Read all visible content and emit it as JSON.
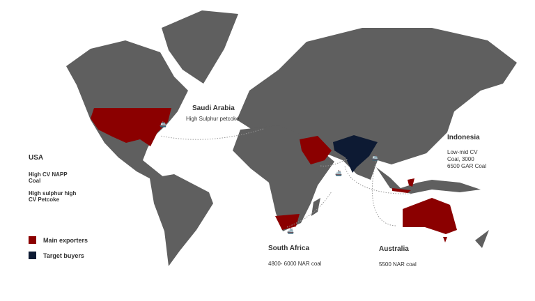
{
  "colors": {
    "land": "#5f5f5f",
    "exporter": "#8b0000",
    "buyer": "#0d1a33",
    "route": "#999999"
  },
  "legend": [
    {
      "label": "Main exporters",
      "color": "#8b0000"
    },
    {
      "label": "Target buyers",
      "color": "#0d1a33"
    }
  ],
  "regions": {
    "usa": {
      "name": "USA",
      "line1": "High CV  NAPP",
      "line2": "Coal",
      "line3": "High sulphur high",
      "line4": "CV Petcoke"
    },
    "saudi": {
      "name": "Saudi Arabia",
      "desc": "High Sulphur petcoke"
    },
    "indonesia": {
      "name": "Indonesia",
      "line1": "Low-mid CV",
      "line2": "Coal, 3000",
      "line3": "6500 GAR Coal"
    },
    "south_africa": {
      "name": "South Africa",
      "desc": "4800- 6000 NAR coal"
    },
    "australia": {
      "name": "Australia",
      "desc": "5500 NAR coal"
    }
  },
  "icons": [
    "ship-icon"
  ]
}
